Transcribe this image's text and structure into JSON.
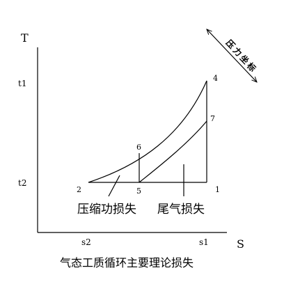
{
  "axes": {
    "y_label": "T",
    "x_label": "S",
    "y_ticks": [
      "t1",
      "t2"
    ],
    "x_ticks": [
      "s2",
      "s1"
    ]
  },
  "points": {
    "p1": "1",
    "p2": "2",
    "p4": "4",
    "p5": "5",
    "p6": "6",
    "p7": "7"
  },
  "regions": {
    "compression_loss": "压缩功损失",
    "exhaust_loss": "尾气损失"
  },
  "pressure_axis": {
    "chars": [
      "压",
      "力",
      "坐",
      "标"
    ]
  },
  "caption": "气态工质循环主要理论损失"
}
